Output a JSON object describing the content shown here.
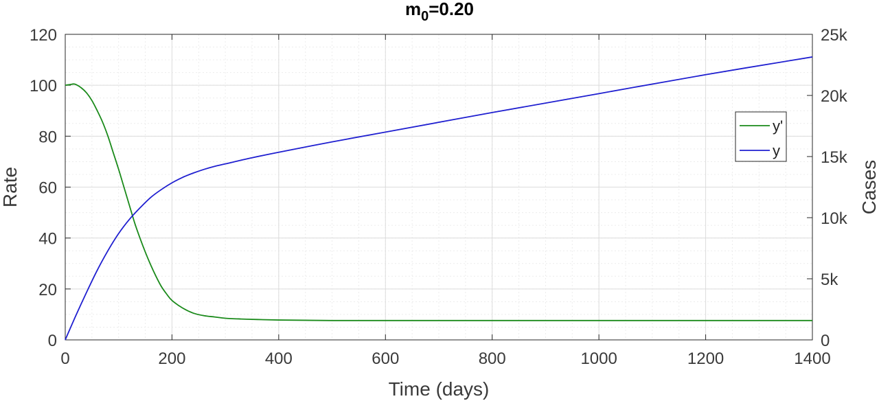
{
  "chart_data": {
    "type": "line",
    "title": {
      "main": "m",
      "subscript": "0",
      "suffix": "=0.20"
    },
    "xlabel": "Time (days)",
    "ylabel_left": "Rate",
    "ylabel_right": "Cases",
    "xlim": [
      0,
      1400
    ],
    "ylim_left": [
      0,
      120
    ],
    "ylim_right": [
      0,
      25000
    ],
    "x_ticks": [
      0,
      200,
      400,
      600,
      800,
      1000,
      1200,
      1400
    ],
    "x_tick_labels": [
      "0",
      "200",
      "400",
      "600",
      "800",
      "1000",
      "1200",
      "1400"
    ],
    "y_left_ticks": [
      0,
      20,
      40,
      60,
      80,
      100,
      120
    ],
    "y_left_tick_labels": [
      "0",
      "20",
      "40",
      "60",
      "80",
      "100",
      "120"
    ],
    "y_right_ticks": [
      0,
      5000,
      10000,
      15000,
      20000,
      25000
    ],
    "y_right_tick_labels": [
      "0",
      "5k",
      "10k",
      "15k",
      "20k",
      "25k"
    ],
    "grid": true,
    "minor_grid": true,
    "legend_position": "right",
    "series": [
      {
        "name": "y'",
        "axis": "left",
        "color": "#1a8a1a",
        "x": [
          0,
          10,
          15,
          20,
          30,
          40,
          50,
          60,
          70,
          80,
          90,
          100,
          110,
          120,
          130,
          140,
          150,
          160,
          170,
          180,
          190,
          200,
          220,
          240,
          260,
          280,
          300,
          330,
          360,
          400,
          450,
          500,
          600,
          800,
          1000,
          1200,
          1400
        ],
        "values": [
          100,
          100.3,
          100.5,
          100.3,
          99,
          97,
          94,
          90,
          85.5,
          80,
          73.5,
          67,
          60,
          53,
          46,
          40,
          34.5,
          29.5,
          25,
          21,
          18,
          15.5,
          12.5,
          10.5,
          9.5,
          9,
          8.5,
          8.2,
          8,
          7.8,
          7.7,
          7.6,
          7.6,
          7.6,
          7.6,
          7.6,
          7.6
        ]
      },
      {
        "name": "y",
        "axis": "right",
        "color": "#1f1fd0",
        "x": [
          0,
          20,
          40,
          60,
          80,
          100,
          120,
          140,
          160,
          180,
          200,
          220,
          240,
          260,
          280,
          300,
          350,
          400,
          500,
          600,
          800,
          1000,
          1200,
          1400
        ],
        "values": [
          0,
          2000,
          3900,
          5700,
          7300,
          8700,
          9850,
          10800,
          11650,
          12300,
          12850,
          13300,
          13650,
          13950,
          14200,
          14400,
          14900,
          15350,
          16200,
          17000,
          18600,
          20150,
          21700,
          23150
        ]
      }
    ]
  }
}
